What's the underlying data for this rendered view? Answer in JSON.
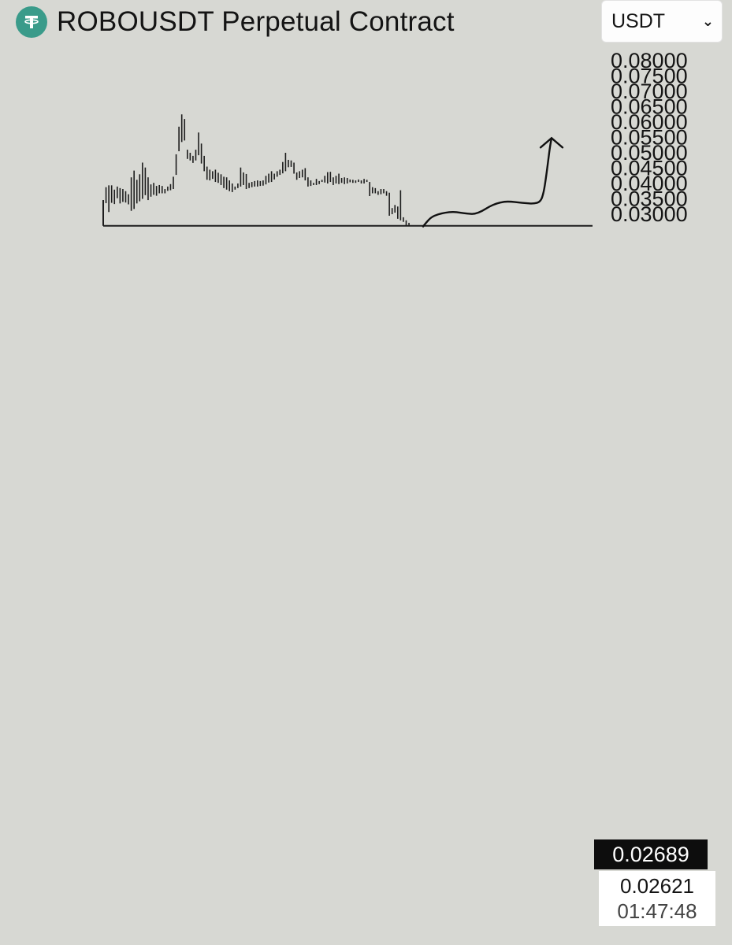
{
  "header": {
    "title": "ROBOUSDT Perpetual Contract",
    "icon": "tether-icon",
    "currency_select": {
      "selected": "USDT"
    }
  },
  "colors": {
    "background": "#d7d8d3",
    "coin_icon": "#3a9b8a",
    "candles": "#1c1c1c",
    "price_box": "#0d0d0d"
  },
  "price": {
    "last": "0.02689",
    "level": "0.02621",
    "countdown": "01:47:48"
  },
  "chart_data": {
    "type": "line",
    "title": "",
    "xlabel": "",
    "ylabel": "",
    "ylim": [
      0.0262,
      0.0812
    ],
    "y_ticks": [
      "0.08000",
      "0.07500",
      "0.07000",
      "0.06500",
      "0.06000",
      "0.05500",
      "0.05000",
      "0.04500",
      "0.04000",
      "0.03500",
      "0.03000"
    ],
    "series": [
      {
        "style": "bars",
        "bars": [
          [
            0.0346,
            0.033
          ],
          [
            0.0388,
            0.0336
          ],
          [
            0.0394,
            0.0307
          ],
          [
            0.0394,
            0.0337
          ],
          [
            0.038,
            0.0333
          ],
          [
            0.039,
            0.0352
          ],
          [
            0.0385,
            0.0335
          ],
          [
            0.0382,
            0.034
          ],
          [
            0.0375,
            0.0338
          ],
          [
            0.0365,
            0.0332
          ],
          [
            0.042,
            0.0311
          ],
          [
            0.0442,
            0.0317
          ],
          [
            0.0412,
            0.0335
          ],
          [
            0.043,
            0.0342
          ],
          [
            0.0468,
            0.035
          ],
          [
            0.0452,
            0.0362
          ],
          [
            0.042,
            0.0346
          ],
          [
            0.0397,
            0.0357
          ],
          [
            0.0402,
            0.0363
          ],
          [
            0.0392,
            0.036
          ],
          [
            0.0395,
            0.0368
          ],
          [
            0.0392,
            0.0368
          ],
          [
            0.0382,
            0.0368
          ],
          [
            0.039,
            0.0376
          ],
          [
            0.0398,
            0.0378
          ],
          [
            0.0422,
            0.0382
          ],
          [
            0.0495,
            0.0428
          ],
          [
            0.0585,
            0.0505
          ],
          [
            0.0625,
            0.0535
          ],
          [
            0.061,
            0.054
          ],
          [
            0.051,
            0.048
          ],
          [
            0.05,
            0.0475
          ],
          [
            0.049,
            0.0467
          ],
          [
            0.051,
            0.0475
          ],
          [
            0.0566,
            0.0492
          ],
          [
            0.053,
            0.0465
          ],
          [
            0.049,
            0.044
          ],
          [
            0.0455,
            0.0412
          ],
          [
            0.0445,
            0.041
          ],
          [
            0.044,
            0.0415
          ],
          [
            0.0445,
            0.0405
          ],
          [
            0.0435,
            0.0402
          ],
          [
            0.043,
            0.0395
          ],
          [
            0.0422,
            0.0385
          ],
          [
            0.042,
            0.038
          ],
          [
            0.041,
            0.0375
          ],
          [
            0.04,
            0.0372
          ],
          [
            0.039,
            0.038
          ],
          [
            0.04,
            0.0385
          ],
          [
            0.0452,
            0.039
          ],
          [
            0.0436,
            0.0395
          ],
          [
            0.0431,
            0.0382
          ],
          [
            0.0402,
            0.0385
          ],
          [
            0.0405,
            0.0388
          ],
          [
            0.0408,
            0.039
          ],
          [
            0.041,
            0.039
          ],
          [
            0.0408,
            0.0392
          ],
          [
            0.041,
            0.0393
          ],
          [
            0.0425,
            0.0397
          ],
          [
            0.0432,
            0.0403
          ],
          [
            0.044,
            0.0405
          ],
          [
            0.0432,
            0.0413
          ],
          [
            0.044,
            0.0422
          ],
          [
            0.0445,
            0.0428
          ],
          [
            0.047,
            0.0433
          ],
          [
            0.05,
            0.044
          ],
          [
            0.0477,
            0.0453
          ],
          [
            0.0475,
            0.0454
          ],
          [
            0.0468,
            0.0432
          ],
          [
            0.0436,
            0.0412
          ],
          [
            0.044,
            0.0418
          ],
          [
            0.0445,
            0.042
          ],
          [
            0.045,
            0.041
          ],
          [
            0.042,
            0.039
          ],
          [
            0.041,
            0.0392
          ],
          [
            0.0402,
            0.0395
          ],
          [
            0.0415,
            0.0395
          ],
          [
            0.0408,
            0.0398
          ],
          [
            0.0412,
            0.0405
          ],
          [
            0.0425,
            0.0403
          ],
          [
            0.0437,
            0.04
          ],
          [
            0.0438,
            0.0405
          ],
          [
            0.042,
            0.0395
          ],
          [
            0.0425,
            0.04
          ],
          [
            0.0432,
            0.0398
          ],
          [
            0.0418,
            0.0402
          ],
          [
            0.042,
            0.0398
          ],
          [
            0.0418,
            0.04
          ],
          [
            0.0413,
            0.0404
          ],
          [
            0.0412,
            0.0402
          ],
          [
            0.041,
            0.0402
          ],
          [
            0.0413,
            0.0405
          ],
          [
            0.041,
            0.04
          ],
          [
            0.0415,
            0.04
          ],
          [
            0.0412,
            0.0405
          ],
          [
            0.0405,
            0.0359
          ],
          [
            0.0388,
            0.0368
          ],
          [
            0.0385,
            0.0368
          ],
          [
            0.0375,
            0.0363
          ],
          [
            0.0382,
            0.0365
          ],
          [
            0.0382,
            0.0368
          ],
          [
            0.0375,
            0.036
          ],
          [
            0.037,
            0.0295
          ],
          [
            0.032,
            0.03
          ],
          [
            0.033,
            0.0305
          ],
          [
            0.0325,
            0.0285
          ],
          [
            0.0378,
            0.028
          ],
          [
            0.029,
            0.0275
          ],
          [
            0.028,
            0.0262
          ],
          [
            0.0272,
            0.0262
          ]
        ]
      },
      {
        "style": "drawn-curve",
        "points": [
          [
            537,
            0.026
          ],
          [
            540,
            0.027
          ],
          [
            547,
            0.029
          ],
          [
            556,
            0.03
          ],
          [
            565,
            0.0305
          ],
          [
            575,
            0.0308
          ],
          [
            584,
            0.0305
          ],
          [
            593,
            0.0302
          ],
          [
            602,
            0.03
          ],
          [
            612,
            0.031
          ],
          [
            621,
            0.0325
          ],
          [
            630,
            0.0335
          ],
          [
            640,
            0.0341
          ],
          [
            649,
            0.0341
          ],
          [
            658,
            0.0338
          ],
          [
            667,
            0.0336
          ],
          [
            677,
            0.0334
          ],
          [
            686,
            0.034
          ],
          [
            690,
            0.037
          ],
          [
            693,
            0.042
          ],
          [
            696,
            0.048
          ],
          [
            698,
            0.052
          ],
          [
            700,
            0.0548
          ]
        ],
        "arrow_end": true
      }
    ],
    "reference_line": 0.02621,
    "grid": false,
    "legend": "none"
  }
}
